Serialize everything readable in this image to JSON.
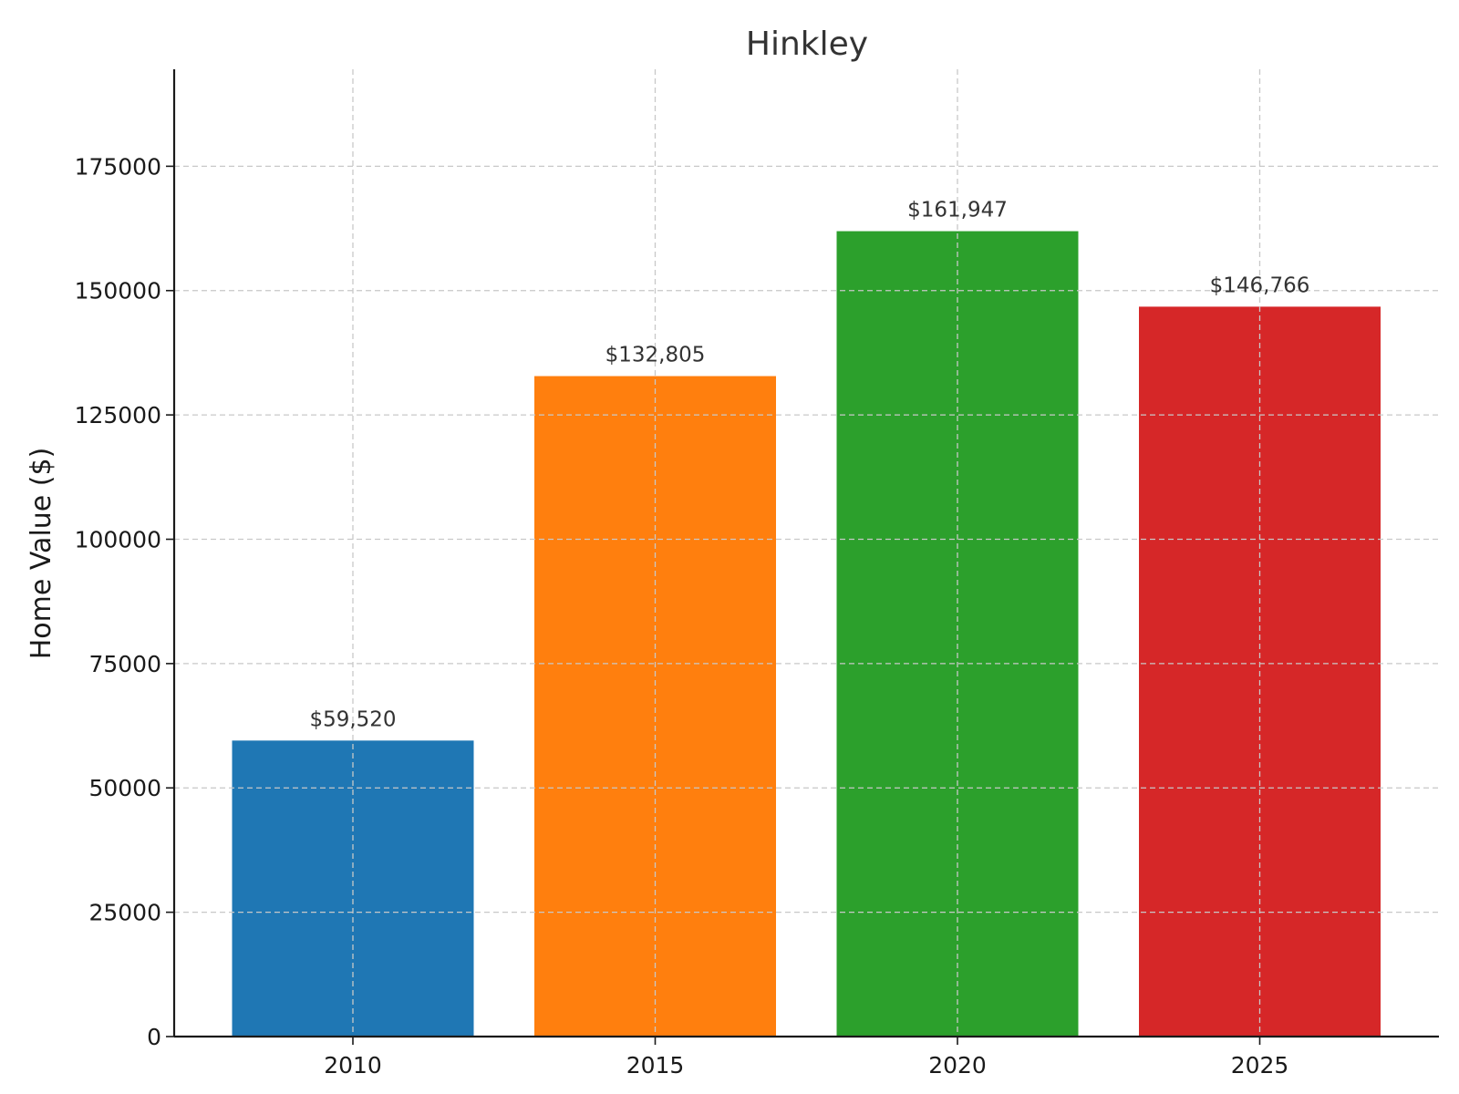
{
  "chart_data": {
    "type": "bar",
    "title": "Hinkley",
    "xlabel": "",
    "ylabel": "Home Value ($)",
    "categories": [
      "2010",
      "2015",
      "2020",
      "2025"
    ],
    "values": [
      59520,
      132805,
      161947,
      146766
    ],
    "value_labels": [
      "$59,520",
      "$132,805",
      "$161,947",
      "$146,766"
    ],
    "colors": [
      "#1f77b4",
      "#ff7f0e",
      "#2ca02c",
      "#d62728"
    ],
    "y_ticks": [
      0,
      25000,
      50000,
      75000,
      100000,
      125000,
      150000,
      175000
    ],
    "y_tick_labels": [
      "0",
      "25000",
      "50000",
      "75000",
      "100000",
      "125000",
      "150000",
      "175000"
    ],
    "ylim": [
      0,
      194500
    ],
    "grid": true
  }
}
